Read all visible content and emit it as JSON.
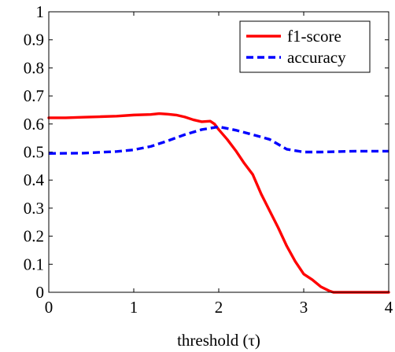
{
  "chart_data": {
    "type": "line",
    "title": "",
    "xlabel": "threshold (τ)",
    "ylabel": "",
    "xlim": [
      0,
      4
    ],
    "ylim": [
      0,
      1
    ],
    "x_ticks": [
      "0",
      "1",
      "2",
      "3",
      "4"
    ],
    "y_ticks": [
      "0",
      "0.1",
      "0.2",
      "0.3",
      "0.4",
      "0.5",
      "0.6",
      "0.7",
      "0.8",
      "0.9",
      "1"
    ],
    "grid": false,
    "legend_position": "top-right",
    "series": [
      {
        "name": "f1-score",
        "color": "#ff0000",
        "style": "solid",
        "points": [
          [
            0,
            0.622
          ],
          [
            0.2,
            0.622
          ],
          [
            0.4,
            0.624
          ],
          [
            0.6,
            0.626
          ],
          [
            0.8,
            0.628
          ],
          [
            1.0,
            0.632
          ],
          [
            1.2,
            0.634
          ],
          [
            1.3,
            0.637
          ],
          [
            1.4,
            0.635
          ],
          [
            1.5,
            0.632
          ],
          [
            1.6,
            0.625
          ],
          [
            1.7,
            0.615
          ],
          [
            1.8,
            0.608
          ],
          [
            1.9,
            0.61
          ],
          [
            1.95,
            0.6
          ],
          [
            2.0,
            0.58
          ],
          [
            2.1,
            0.545
          ],
          [
            2.2,
            0.505
          ],
          [
            2.3,
            0.46
          ],
          [
            2.4,
            0.42
          ],
          [
            2.5,
            0.35
          ],
          [
            2.6,
            0.29
          ],
          [
            2.7,
            0.23
          ],
          [
            2.8,
            0.165
          ],
          [
            2.9,
            0.11
          ],
          [
            3.0,
            0.065
          ],
          [
            3.1,
            0.045
          ],
          [
            3.2,
            0.02
          ],
          [
            3.3,
            0.005
          ],
          [
            3.35,
            0.0
          ],
          [
            3.5,
            0.0
          ],
          [
            4.0,
            0.0
          ]
        ]
      },
      {
        "name": "accuracy",
        "color": "#0000ff",
        "style": "dashed",
        "points": [
          [
            0,
            0.495
          ],
          [
            0.4,
            0.496
          ],
          [
            0.8,
            0.502
          ],
          [
            1.0,
            0.508
          ],
          [
            1.2,
            0.52
          ],
          [
            1.4,
            0.54
          ],
          [
            1.6,
            0.562
          ],
          [
            1.8,
            0.58
          ],
          [
            2.0,
            0.59
          ],
          [
            2.2,
            0.578
          ],
          [
            2.4,
            0.562
          ],
          [
            2.6,
            0.545
          ],
          [
            2.8,
            0.51
          ],
          [
            3.0,
            0.5
          ],
          [
            3.2,
            0.5
          ],
          [
            3.6,
            0.503
          ],
          [
            4.0,
            0.503
          ]
        ]
      }
    ]
  }
}
